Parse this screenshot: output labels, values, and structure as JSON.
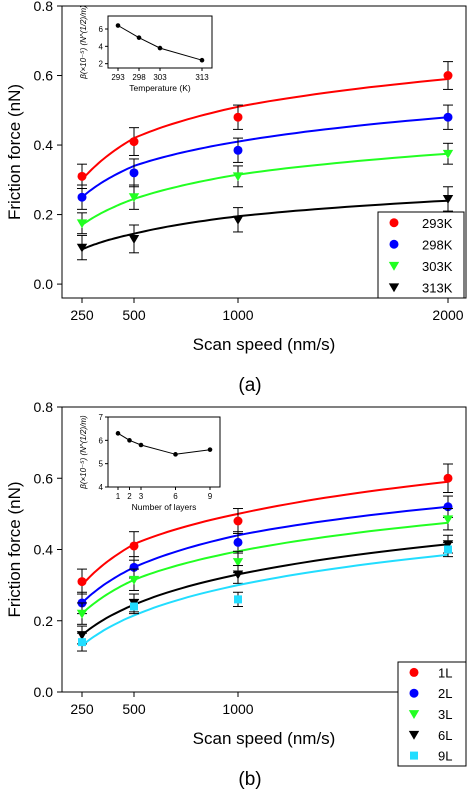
{
  "chart_data": [
    {
      "type": "scatter",
      "panel_label": "(a)",
      "xlabel": "Scan speed (nm/s)",
      "ylabel": "Friction force (nN)",
      "x_ticks": [
        250,
        500,
        1000,
        2000
      ],
      "y_ticks": [
        "0.0",
        "0.2",
        "0.4",
        "0.6",
        "0.8"
      ],
      "ylim": [
        -0.04,
        0.8
      ],
      "legend_position": "bottom-right",
      "x": [
        250,
        500,
        1000,
        2000
      ],
      "series": [
        {
          "name": "293K",
          "color": "#ff0000",
          "marker": "circle",
          "values": [
            0.31,
            0.41,
            0.48,
            0.6
          ],
          "errors": [
            0.035,
            0.04,
            0.035,
            0.04
          ],
          "fit": [
            0.3,
            0.42,
            0.51,
            0.59
          ]
        },
        {
          "name": "298K",
          "color": "#0000ff",
          "marker": "circle",
          "values": [
            0.25,
            0.32,
            0.385,
            0.48
          ],
          "errors": [
            0.035,
            0.04,
            0.035,
            0.035
          ],
          "fit": [
            0.25,
            0.34,
            0.41,
            0.48
          ]
        },
        {
          "name": "303K",
          "color": "#22ff22",
          "marker": "triangle-down",
          "values": [
            0.175,
            0.25,
            0.31,
            0.375
          ],
          "errors": [
            0.03,
            0.035,
            0.03,
            0.03
          ],
          "fit": [
            0.17,
            0.245,
            0.315,
            0.375
          ]
        },
        {
          "name": "313K",
          "color": "#000000",
          "marker": "triangle-down",
          "values": [
            0.105,
            0.13,
            0.185,
            0.245
          ],
          "errors": [
            0.035,
            0.04,
            0.035,
            0.035
          ],
          "fit": [
            0.1,
            0.145,
            0.195,
            0.24
          ]
        }
      ],
      "inset": {
        "ylabel": "β(×10⁻⁵) (N^(1/2)/m)",
        "xlabel": "Temperature (K)",
        "x": [
          293,
          298,
          303,
          313
        ],
        "x_ticks": [
          "293",
          "298",
          "303",
          "313"
        ],
        "y": [
          6.4,
          5.0,
          3.8,
          2.4
        ],
        "y_ticks": [
          "2",
          "4",
          "6"
        ],
        "ylim": [
          1.5,
          7.5
        ]
      }
    },
    {
      "type": "scatter",
      "panel_label": "(b)",
      "xlabel": "Scan speed (nm/s)",
      "ylabel": "Friction force (nN)",
      "x_ticks": [
        250,
        500,
        1000,
        2000
      ],
      "y_ticks": [
        "0.0",
        "0.2",
        "0.4",
        "0.6",
        "0.8"
      ],
      "ylim": [
        0,
        0.8
      ],
      "legend_position": "bottom-right",
      "x": [
        250,
        500,
        1000,
        2000
      ],
      "series": [
        {
          "name": "1L",
          "color": "#ff0000",
          "marker": "circle",
          "values": [
            0.31,
            0.41,
            0.48,
            0.6
          ],
          "errors": [
            0.035,
            0.04,
            0.035,
            0.04
          ],
          "fit": [
            0.3,
            0.415,
            0.5,
            0.59
          ]
        },
        {
          "name": "2L",
          "color": "#0000ff",
          "marker": "circle",
          "values": [
            0.25,
            0.35,
            0.42,
            0.52
          ],
          "errors": [
            0.03,
            0.03,
            0.03,
            0.03
          ],
          "fit": [
            0.25,
            0.35,
            0.44,
            0.52
          ]
        },
        {
          "name": "3L",
          "color": "#22ff22",
          "marker": "triangle-down",
          "values": [
            0.22,
            0.315,
            0.365,
            0.485
          ],
          "errors": [
            0.03,
            0.03,
            0.03,
            0.03
          ],
          "fit": [
            0.22,
            0.315,
            0.395,
            0.475
          ]
        },
        {
          "name": "6L",
          "color": "#000000",
          "marker": "triangle-down",
          "values": [
            0.16,
            0.25,
            0.33,
            0.415
          ],
          "errors": [
            0.025,
            0.025,
            0.025,
            0.025
          ],
          "fit": [
            0.16,
            0.245,
            0.33,
            0.415
          ]
        },
        {
          "name": "9L",
          "color": "#22ddff",
          "marker": "square",
          "values": [
            0.14,
            0.24,
            0.26,
            0.4
          ],
          "errors": [
            0.025,
            0.02,
            0.02,
            0.02
          ],
          "fit": [
            0.13,
            0.215,
            0.3,
            0.385
          ]
        }
      ],
      "inset": {
        "ylabel": "β(×10⁻⁵) (N^(1/2)/m)",
        "xlabel": "Number of layers",
        "x": [
          1,
          2,
          3,
          6,
          9
        ],
        "x_ticks": [
          "1",
          "2",
          "3",
          "6",
          "9"
        ],
        "y": [
          6.3,
          6.0,
          5.8,
          5.4,
          5.6
        ],
        "y_ticks": [
          "4",
          "5",
          "6",
          "7"
        ],
        "ylim": [
          4,
          7
        ]
      }
    }
  ]
}
